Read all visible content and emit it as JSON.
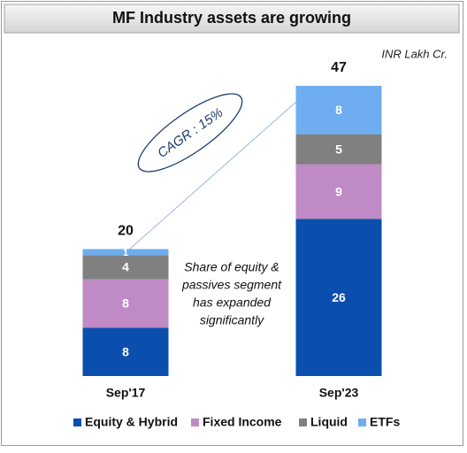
{
  "chart_data": {
    "type": "stacked-bar",
    "title": "MF Industry assets are growing",
    "unit_note": "INR Lakh Cr.",
    "categories": [
      "Sep'17",
      "Sep'23"
    ],
    "series": [
      {
        "name": "Equity & Hybrid",
        "color": "#0b4fae",
        "values": [
          8,
          26
        ]
      },
      {
        "name": "Fixed Income",
        "color": "#c08ac6",
        "values": [
          8,
          9
        ]
      },
      {
        "name": "Liquid",
        "color": "#808080",
        "values": [
          4,
          5
        ]
      },
      {
        "name": "ETFs",
        "color": "#6eaef0",
        "values": [
          1,
          8
        ]
      }
    ],
    "totals": [
      20,
      47
    ],
    "annotation": "CAGR : 15%",
    "note_lines": [
      "Share of equity &",
      "passives segment",
      "has expanded",
      "significantly"
    ]
  }
}
